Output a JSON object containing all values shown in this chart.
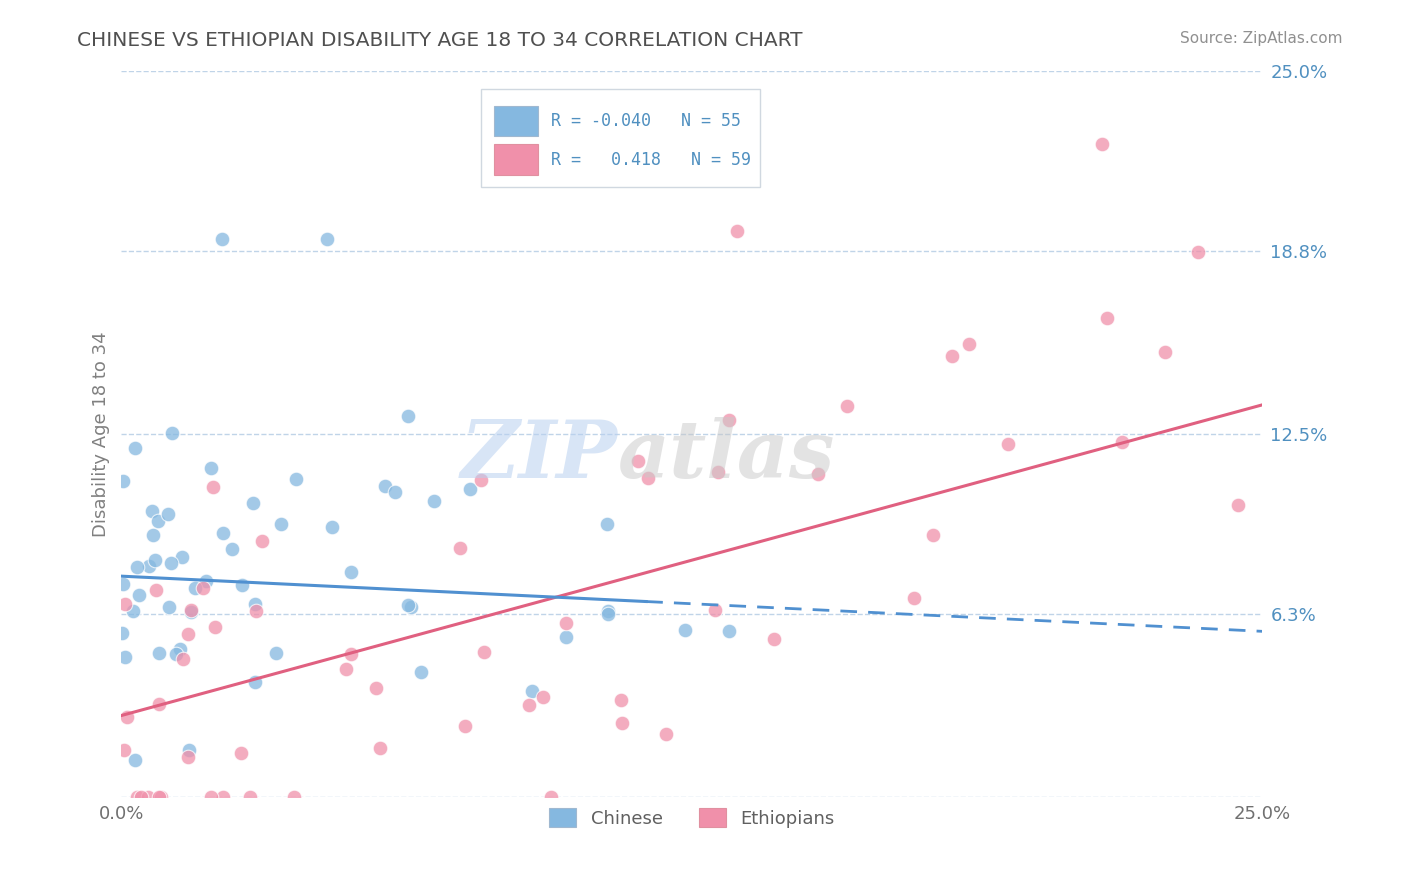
{
  "title": "CHINESE VS ETHIOPIAN DISABILITY AGE 18 TO 34 CORRELATION CHART",
  "source": "Source: ZipAtlas.com",
  "ylabel": "Disability Age 18 to 34",
  "xmin": 0.0,
  "xmax": 0.25,
  "ymin": 0.0,
  "ymax": 0.25,
  "yticks": [
    0.0,
    0.063,
    0.125,
    0.188,
    0.25
  ],
  "ytick_labels": [
    "",
    "6.3%",
    "12.5%",
    "18.8%",
    "25.0%"
  ],
  "xtick_labels": [
    "0.0%",
    "25.0%"
  ],
  "chinese_color": "#85b8e0",
  "ethiopian_color": "#f090aa",
  "chinese_line_color": "#5090d0",
  "ethiopian_line_color": "#e06080",
  "chinese_line_solid_end": 0.115,
  "background_color": "#ffffff",
  "grid_color": "#c0d4e8",
  "title_color": "#505050",
  "right_tick_color": "#5090c0",
  "chinese_R": -0.04,
  "chinese_N": 55,
  "ethiopian_R": 0.418,
  "ethiopian_N": 59,
  "cn_line_x0": 0.0,
  "cn_line_y0": 0.076,
  "cn_line_x1": 0.25,
  "cn_line_y1": 0.057,
  "et_line_x0": 0.0,
  "et_line_y0": 0.028,
  "et_line_x1": 0.25,
  "et_line_y1": 0.135
}
